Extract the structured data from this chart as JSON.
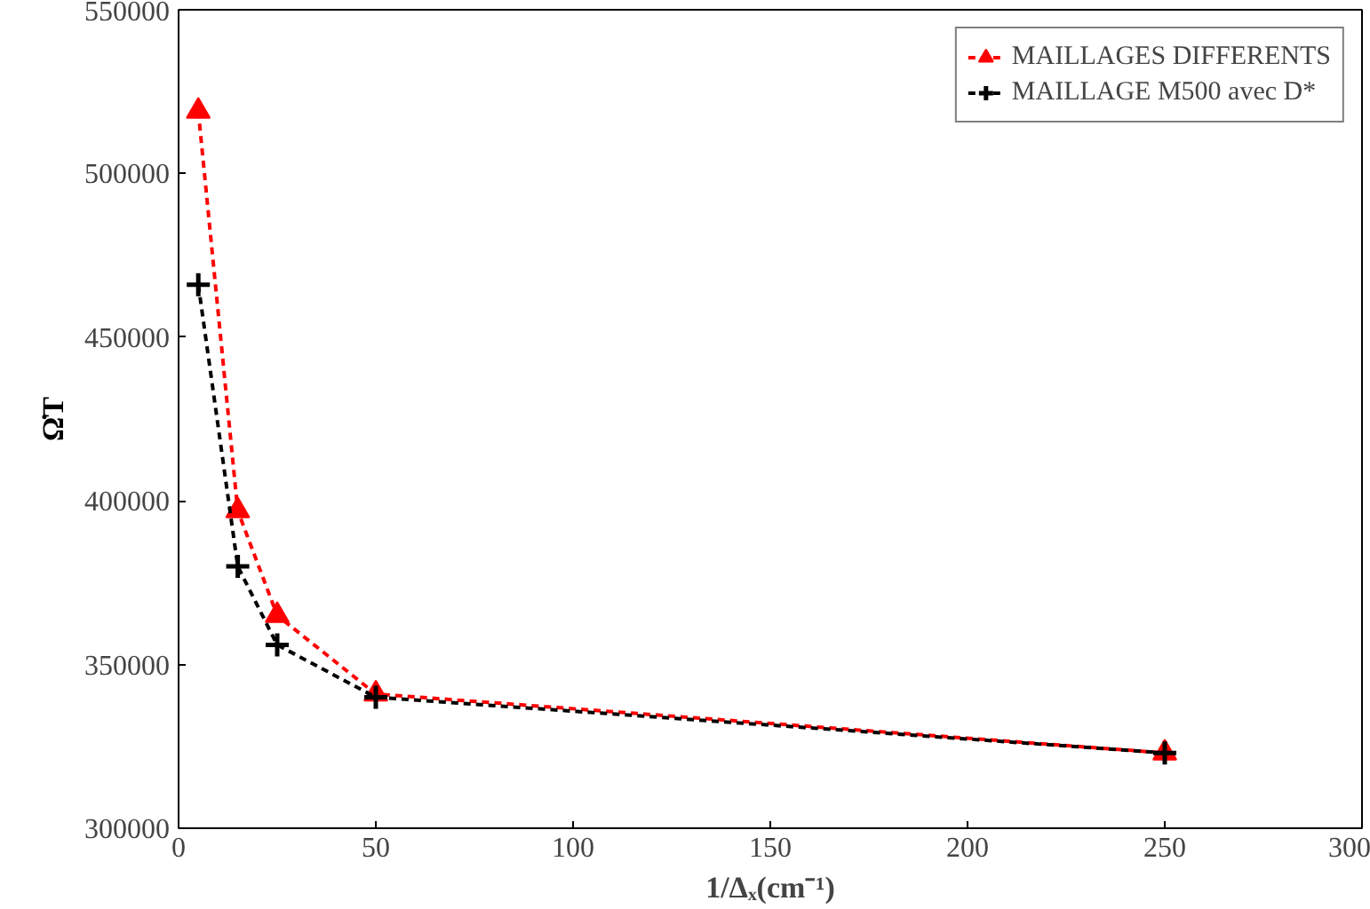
{
  "chart_data": {
    "type": "line",
    "xlabel": "1/Δₓ(cm⁻¹)",
    "ylabel": "Ω̇T",
    "xlim": [
      0,
      300
    ],
    "xticks": [
      0,
      50,
      100,
      150,
      200,
      250,
      300
    ],
    "ylim": [
      300000,
      550000
    ],
    "yticks": [
      300000,
      350000,
      400000,
      450000,
      500000,
      550000
    ],
    "grid": false,
    "legend": "top right",
    "line_style": "dashed",
    "series": [
      {
        "name": "MAILLAGES DIFFERENTS",
        "color": "#ff0000",
        "marker": "triangle",
        "x": [
          5,
          15,
          25,
          50,
          250
        ],
        "values": [
          519000,
          397000,
          365000,
          341000,
          323000
        ]
      },
      {
        "name": "MAILLAGE M500 avec D*",
        "color": "#000000",
        "marker": "cross",
        "x": [
          5,
          15,
          25,
          50,
          250
        ],
        "values": [
          466000,
          380000,
          356000,
          340000,
          323000
        ]
      }
    ]
  }
}
